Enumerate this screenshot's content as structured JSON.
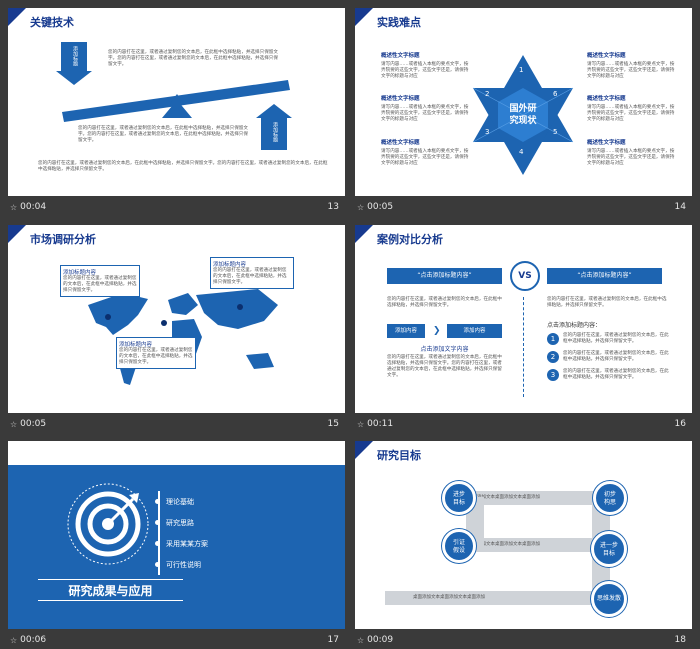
{
  "footers": [
    {
      "time": "00:04",
      "num": "13"
    },
    {
      "time": "00:05",
      "num": "14"
    },
    {
      "time": "00:05",
      "num": "15"
    },
    {
      "time": "00:11",
      "num": "16"
    },
    {
      "time": "00:06",
      "num": "17"
    },
    {
      "time": "00:09",
      "num": "18"
    }
  ],
  "s13": {
    "title": "关键技术",
    "label_left": "添加标题",
    "label_right": "添加标题",
    "text1": "您的内容打在这里，或者通过复制您的文本后，在此框中选择粘贴，并选择只保留文字。您的内容打在这里，或者通过复制您的文本后，在此框中选择粘贴，并选择只保留文字。",
    "text2": "您的内容打在这里，或者通过复制您的文本后，在此框中选择粘贴，并选择只保留文字。您的内容打在这里，或者通过复制您的文本后，在此框中选择粘贴，并选择只保留文字。",
    "text3": "您的内容打在这里，或者通过复制您的文本后，在此框中选择粘贴，并选择只保留文字。您的内容打在这里，或者通过复制您的文本后，在此框中选择粘贴，并选择只保留文字。"
  },
  "s14": {
    "title": "实践难点",
    "center": "国外研\n究现状",
    "numbers": [
      "1",
      "2",
      "3",
      "4",
      "5",
      "6"
    ],
    "item_title": "概述性文字标题",
    "item_text": "请写内容……或者插入本框的要点文字，按弄院要的这些文字，这些文字还是，请保持文字的标题与对应"
  },
  "s15": {
    "title": "市场调研分析",
    "box_title": "添加标题内容",
    "box_text": "您的内容打在这里，或者通过复制您的文本后，在此框中选择粘贴，并选择只保留文字。"
  },
  "s16": {
    "title": "案例对比分析",
    "left_header": "“点击添加标题内容”",
    "right_header": "“点击添加标题内容”",
    "vs": "VS",
    "left_text": "您的内容打在这里，或者通过复制您的文本后，在此框中选择粘贴，并选择只保留文字。",
    "btn1": "添加内容",
    "btn2": "添加内容",
    "sub_title": "点击添加文字内容",
    "left_text2": "您的内容打在这里，或者通过复制您的文本后，在此框中选择粘贴，并选择只保留文字。您的内容打在这里，或者通过复制您的文本后，在此框中选择粘贴，并选择只保留文字。",
    "right_text": "您的内容打在这里，或者通过复制您的文本后，在此框中选择粘贴，并选择只保留文字。",
    "right_sub": "点击添加标题内容：",
    "list": [
      {
        "n": "1",
        "t": "您的内容打在这里，或者通过复制您的文本后，在此框中选择粘贴，并选择只保留文字。"
      },
      {
        "n": "2",
        "t": "您的内容打在这里，或者通过复制您的文本后，在此框中选择粘贴，并选择只保留文字。"
      },
      {
        "n": "3",
        "t": "您的内容打在这里，或者通过复制您的文本后，在此框中选择粘贴，并选择只保留文字。"
      }
    ]
  },
  "s17": {
    "heading": "研究成果与应用",
    "items": [
      "理论基础",
      "研究思路",
      "采用某某方案",
      "可行性说明"
    ]
  },
  "s18": {
    "title": "研究目标",
    "c1": "进步\n目标",
    "c2": "初步\n构思",
    "c3": "引证\n假设",
    "c4": "进一步\n目标",
    "c5": "思维发散",
    "band_text": "桌面添加文本桌面添加文本桌面添加"
  }
}
